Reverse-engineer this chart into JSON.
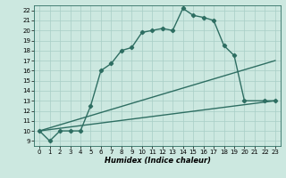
{
  "xlabel": "Humidex (Indice chaleur)",
  "bg_color": "#cce8e0",
  "line_color": "#2e6e62",
  "grid_color": "#a8cec6",
  "xlim": [
    -0.5,
    23.5
  ],
  "ylim": [
    8.5,
    22.5
  ],
  "xticks": [
    0,
    1,
    2,
    3,
    4,
    5,
    6,
    7,
    8,
    9,
    10,
    11,
    12,
    13,
    14,
    15,
    16,
    17,
    18,
    19,
    20,
    21,
    22,
    23
  ],
  "yticks": [
    9,
    10,
    11,
    12,
    13,
    14,
    15,
    16,
    17,
    18,
    19,
    20,
    21,
    22
  ],
  "series1_x": [
    0,
    1,
    2,
    3,
    4,
    5,
    6,
    7,
    8,
    9,
    10,
    11,
    12,
    13,
    14,
    15,
    16,
    17,
    18,
    19,
    20,
    22,
    23
  ],
  "series1_y": [
    10,
    9,
    10,
    10,
    10,
    12.5,
    16,
    16.7,
    18,
    18.3,
    19.8,
    20,
    20.2,
    20,
    22.2,
    21.5,
    21.3,
    21,
    18.5,
    17.5,
    13,
    13,
    13
  ],
  "series2_x": [
    0,
    23
  ],
  "series2_y": [
    10,
    13
  ],
  "series3_x": [
    0,
    23
  ],
  "series3_y": [
    10,
    17
  ],
  "marker": "D",
  "marker_size": 2.2,
  "line_width": 1.0,
  "tick_fontsize": 5.0,
  "xlabel_fontsize": 6.0
}
